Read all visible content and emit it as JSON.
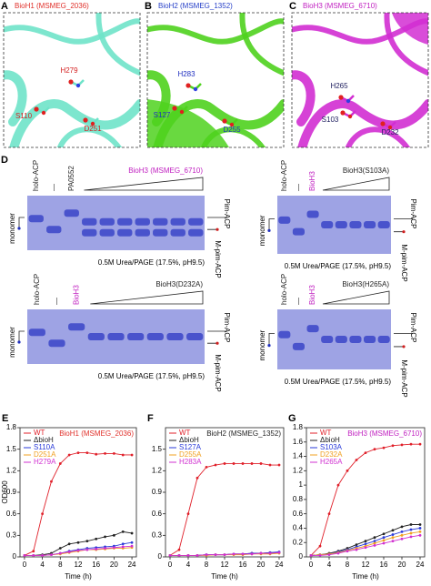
{
  "structures": [
    {
      "letter": "A",
      "title": "BioH1 (MSMEG_2036)",
      "title_color": "#e0302a",
      "ribbon_color": "#6fe3c9",
      "residue_color": "#d42020",
      "residues": [
        "H279",
        "S110",
        "D251"
      ]
    },
    {
      "letter": "B",
      "title": "BioH2 (MSMEG_1352)",
      "title_color": "#2740c8",
      "ribbon_color": "#4fd21e",
      "residue_color": "#2030c0",
      "residues": [
        "H283",
        "S127",
        "D255"
      ]
    },
    {
      "letter": "C",
      "title": "BioH3 (MSMEG_6710)",
      "title_color": "#c020c0",
      "ribbon_color": "#d22ed2",
      "residue_color": "#202060",
      "residues": [
        "H265",
        "S103",
        "D232"
      ]
    }
  ],
  "gels": {
    "letter": "D",
    "items": [
      {
        "lanes": [
          "holo-ACP",
          "—",
          "PA0552"
        ],
        "ramp_label": "BioH3 (MSMEG_6710)",
        "condition": "0.5M Urea/PAGE (17.5%, pH9.5)",
        "left_label": "monomer",
        "right_labels": [
          "Pim-ACP",
          "M-pim-ACP"
        ]
      },
      {
        "lanes": [
          "holo-ACP",
          "—",
          "BioH3"
        ],
        "ramp_label": "BioH3(S103A)",
        "condition": "0.5M Urea/PAGE (17.5%, pH9.5)",
        "left_label": "monomer",
        "right_labels": [
          "Pim-ACP",
          "M-pim-ACP"
        ]
      },
      {
        "lanes": [
          "holo-ACP",
          "—",
          "BioH3"
        ],
        "ramp_label": "BioH3(D232A)",
        "condition": "0.5M Urea/PAGE (17.5%, pH9.5)",
        "left_label": "monomer",
        "right_labels": [
          "Pim-ACP",
          "M-pim-ACP"
        ]
      },
      {
        "lanes": [
          "holo-ACP",
          "—",
          "BioH3"
        ],
        "ramp_label": "BioH3(H265A)",
        "condition": "0.5M Urea/PAGE (17.5%, pH9.5)",
        "left_label": "monomer",
        "right_labels": [
          "Pim-ACP",
          "M-pim-ACP"
        ]
      }
    ]
  },
  "chart_data": [
    {
      "type": "line",
      "panel_label": "E",
      "title": "BioH1 (MSMEG_2036)",
      "title_color": "#e0302a",
      "ylabel": "OD600",
      "xlabel": "Time (h)",
      "x": [
        0,
        2,
        4,
        6,
        8,
        10,
        12,
        14,
        16,
        18,
        20,
        22,
        24
      ],
      "xlim": [
        -1,
        25
      ],
      "xticks": [
        0,
        4,
        8,
        12,
        16,
        20,
        24
      ],
      "ylim": [
        0,
        1.8
      ],
      "yticks": [
        0,
        0.3,
        0.6,
        0.9,
        1.2,
        1.5,
        1.8
      ],
      "series": [
        {
          "name": "WT",
          "color": "#e0202a",
          "values": [
            0.02,
            0.08,
            0.6,
            1.05,
            1.3,
            1.42,
            1.45,
            1.45,
            1.43,
            1.44,
            1.44,
            1.42,
            1.42
          ]
        },
        {
          "name": "ΔbioH",
          "color": "#222222",
          "values": [
            0.02,
            0.02,
            0.03,
            0.05,
            0.12,
            0.18,
            0.2,
            0.22,
            0.25,
            0.28,
            0.3,
            0.35,
            0.33
          ]
        },
        {
          "name": "S110A",
          "color": "#2a3ad8",
          "values": [
            0.02,
            0.02,
            0.02,
            0.03,
            0.05,
            0.08,
            0.1,
            0.12,
            0.13,
            0.14,
            0.15,
            0.18,
            0.2
          ]
        },
        {
          "name": "D251A",
          "color": "#f0a020",
          "values": [
            0.02,
            0.02,
            0.02,
            0.03,
            0.04,
            0.06,
            0.08,
            0.1,
            0.1,
            0.11,
            0.12,
            0.12,
            0.13
          ]
        },
        {
          "name": "H279A",
          "color": "#d030d0",
          "values": [
            0.02,
            0.02,
            0.02,
            0.03,
            0.05,
            0.07,
            0.09,
            0.1,
            0.11,
            0.12,
            0.13,
            0.14,
            0.15
          ]
        }
      ]
    },
    {
      "type": "line",
      "panel_label": "F",
      "title": "BioH2 (MSMEG_1352)",
      "title_color": "#222222",
      "xlabel": "Time (h)",
      "x": [
        0,
        2,
        4,
        6,
        8,
        10,
        12,
        14,
        16,
        18,
        20,
        22,
        24
      ],
      "xlim": [
        -1,
        25
      ],
      "xticks": [
        0,
        4,
        8,
        12,
        16,
        20,
        24
      ],
      "ylim": [
        0,
        1.8
      ],
      "yticks": [
        0,
        0.3,
        0.6,
        0.9,
        1.2,
        1.5
      ],
      "series": [
        {
          "name": "WT",
          "color": "#e0202a",
          "values": [
            0.02,
            0.1,
            0.6,
            1.1,
            1.25,
            1.28,
            1.3,
            1.3,
            1.3,
            1.3,
            1.3,
            1.28,
            1.28
          ]
        },
        {
          "name": "ΔbioH",
          "color": "#222222",
          "values": [
            0.02,
            0.02,
            0.02,
            0.02,
            0.03,
            0.03,
            0.03,
            0.04,
            0.04,
            0.05,
            0.05,
            0.06,
            0.06
          ]
        },
        {
          "name": "S127A",
          "color": "#2a3ad8",
          "values": [
            0.02,
            0.02,
            0.02,
            0.02,
            0.03,
            0.03,
            0.03,
            0.04,
            0.04,
            0.05,
            0.05,
            0.06,
            0.07
          ]
        },
        {
          "name": "D255A",
          "color": "#f0a020",
          "values": [
            0.02,
            0.02,
            0.02,
            0.02,
            0.02,
            0.03,
            0.03,
            0.03,
            0.03,
            0.04,
            0.04,
            0.04,
            0.05
          ]
        },
        {
          "name": "H283A",
          "color": "#d030d0",
          "values": [
            0.02,
            0.02,
            0.02,
            0.02,
            0.03,
            0.03,
            0.03,
            0.04,
            0.04,
            0.04,
            0.05,
            0.05,
            0.06
          ]
        }
      ]
    },
    {
      "type": "line",
      "panel_label": "G",
      "title": "BioH3 (MSMEG_6710)",
      "title_color": "#c020c0",
      "xlabel": "Time (h)",
      "x": [
        0,
        2,
        4,
        6,
        8,
        10,
        12,
        14,
        16,
        18,
        20,
        22,
        24
      ],
      "xlim": [
        -1,
        25
      ],
      "xticks": [
        0,
        4,
        8,
        12,
        16,
        20,
        24
      ],
      "ylim": [
        0,
        1.8
      ],
      "yticks": [
        0,
        0.2,
        0.4,
        0.6,
        0.8,
        1,
        1.2,
        1.4,
        1.6,
        1.8
      ],
      "series": [
        {
          "name": "WT",
          "color": "#e0202a",
          "values": [
            0.02,
            0.15,
            0.6,
            1.0,
            1.2,
            1.35,
            1.45,
            1.5,
            1.52,
            1.55,
            1.56,
            1.57,
            1.57
          ]
        },
        {
          "name": "ΔbioH",
          "color": "#222222",
          "values": [
            0.02,
            0.03,
            0.05,
            0.08,
            0.12,
            0.17,
            0.22,
            0.27,
            0.32,
            0.37,
            0.42,
            0.45,
            0.45
          ]
        },
        {
          "name": "S103A",
          "color": "#2a3ad8",
          "values": [
            0.02,
            0.03,
            0.04,
            0.07,
            0.1,
            0.14,
            0.18,
            0.22,
            0.27,
            0.31,
            0.35,
            0.38,
            0.4
          ]
        },
        {
          "name": "D232A",
          "color": "#f0a020",
          "values": [
            0.02,
            0.03,
            0.04,
            0.06,
            0.09,
            0.12,
            0.15,
            0.19,
            0.23,
            0.27,
            0.3,
            0.33,
            0.35
          ]
        },
        {
          "name": "H265A",
          "color": "#d030d0",
          "values": [
            0.02,
            0.02,
            0.03,
            0.05,
            0.08,
            0.1,
            0.13,
            0.16,
            0.19,
            0.22,
            0.25,
            0.28,
            0.3
          ]
        }
      ]
    }
  ]
}
